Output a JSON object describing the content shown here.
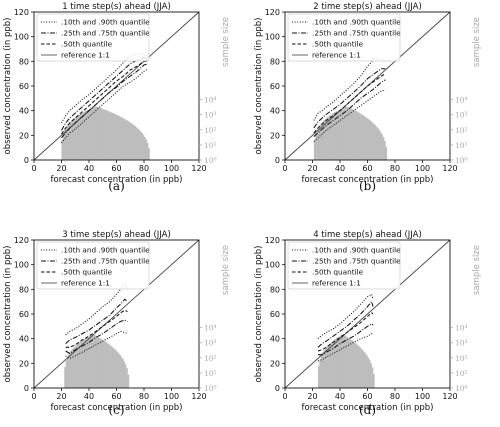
{
  "chart_data": [
    {
      "type": "line",
      "title": "1 time step(s) ahead (JJA)",
      "caption": "(a)",
      "xlabel": "forecast concentration (in ppb)",
      "ylabel": "observed concentration (in ppb)",
      "y2label": "sample size",
      "xlim": [
        0,
        120
      ],
      "ylim": [
        0,
        120
      ],
      "xticks": [
        "0",
        "20",
        "40",
        "60",
        "80",
        "100",
        "120"
      ],
      "yticks": [
        "0",
        "20",
        "40",
        "60",
        "80",
        "100",
        "120"
      ],
      "y2ticks": [
        "10⁰",
        "10¹",
        "10²",
        "10³",
        "10⁴"
      ],
      "legend": [
        ".10th and .90th quantile",
        ".25th and .75th quantile",
        ".50th quantile",
        "reference 1:1"
      ],
      "legend_position": "top-left",
      "series": [
        {
          "name": ".10th quantile",
          "style": "dotted",
          "x": [
            20,
            23,
            26,
            30,
            35,
            40,
            45,
            50,
            55,
            60,
            65,
            70,
            75,
            80,
            83
          ],
          "y": [
            14,
            18,
            22,
            25,
            30,
            35,
            40,
            45,
            50,
            55,
            60,
            63,
            67,
            72,
            74
          ]
        },
        {
          "name": ".90th quantile",
          "style": "dotted",
          "x": [
            20,
            23,
            26,
            30,
            35,
            40,
            45,
            50,
            55,
            60,
            65,
            70,
            75,
            80,
            83
          ],
          "y": [
            30,
            36,
            40,
            44,
            49,
            53,
            58,
            63,
            68,
            73,
            79,
            84,
            86,
            86,
            82
          ]
        },
        {
          "name": ".25th quantile",
          "style": "dashdot",
          "x": [
            20,
            23,
            26,
            30,
            35,
            40,
            45,
            50,
            55,
            60,
            65,
            70,
            75,
            80,
            83
          ],
          "y": [
            18,
            22,
            26,
            30,
            35,
            40,
            45,
            50,
            55,
            59,
            64,
            68,
            72,
            77,
            78
          ]
        },
        {
          "name": ".75th quantile",
          "style": "dashdot",
          "x": [
            20,
            23,
            26,
            30,
            35,
            40,
            45,
            50,
            55,
            60,
            65,
            70,
            75,
            80,
            83
          ],
          "y": [
            24,
            30,
            34,
            38,
            43,
            48,
            53,
            58,
            63,
            68,
            73,
            78,
            81,
            83,
            80
          ]
        },
        {
          "name": ".50th quantile",
          "style": "dashed",
          "x": [
            20,
            23,
            26,
            30,
            35,
            40,
            45,
            50,
            55,
            60,
            65,
            70,
            75,
            80,
            83
          ],
          "y": [
            21,
            26,
            30,
            34,
            39,
            44,
            49,
            54,
            59,
            64,
            68,
            73,
            76,
            80,
            80
          ]
        }
      ],
      "histogram": {
        "start": 20,
        "end": 84,
        "peak_at": 45,
        "peak_log": 3.55,
        "left_shape": 0.25,
        "right_shape": 0.35
      }
    },
    {
      "type": "line",
      "title": "2 time step(s) ahead (JJA)",
      "caption": "(b)",
      "xlabel": "forecast concentration (in ppb)",
      "ylabel": "observed concentration (in ppb)",
      "y2label": "sample size",
      "xlim": [
        0,
        120
      ],
      "ylim": [
        0,
        120
      ],
      "xticks": [
        "0",
        "20",
        "40",
        "60",
        "80",
        "100",
        "120"
      ],
      "yticks": [
        "0",
        "20",
        "40",
        "60",
        "80",
        "100",
        "120"
      ],
      "y2ticks": [
        "10⁰",
        "10¹",
        "10²",
        "10³",
        "10⁴"
      ],
      "legend": [
        ".10th and .90th quantile",
        ".25th and .75th quantile",
        ".50th quantile",
        "reference 1:1"
      ],
      "legend_position": "top-left",
      "series": [
        {
          "name": ".10th quantile",
          "style": "dotted",
          "x": [
            21,
            24,
            27,
            30,
            35,
            40,
            45,
            50,
            55,
            60,
            65,
            70,
            73
          ],
          "y": [
            15,
            18,
            21,
            24,
            28,
            32,
            36,
            40,
            44,
            48,
            52,
            56,
            57
          ]
        },
        {
          "name": ".90th quantile",
          "style": "dotted",
          "x": [
            21,
            24,
            27,
            30,
            35,
            40,
            45,
            50,
            55,
            60,
            65,
            70,
            73
          ],
          "y": [
            32,
            38,
            40,
            43,
            47,
            52,
            57,
            62,
            68,
            76,
            82,
            82,
            80
          ]
        },
        {
          "name": ".25th quantile",
          "style": "dashdot",
          "x": [
            21,
            24,
            27,
            30,
            35,
            40,
            45,
            50,
            55,
            60,
            65,
            70,
            73
          ],
          "y": [
            19,
            22,
            25,
            28,
            32,
            36,
            40,
            45,
            50,
            54,
            58,
            63,
            65
          ]
        },
        {
          "name": ".75th quantile",
          "style": "dashdot",
          "x": [
            21,
            24,
            27,
            30,
            35,
            40,
            45,
            50,
            55,
            60,
            65,
            70,
            73
          ],
          "y": [
            26,
            31,
            34,
            37,
            41,
            45,
            50,
            55,
            60,
            66,
            70,
            74,
            74
          ]
        },
        {
          "name": ".50th quantile",
          "style": "dashed",
          "x": [
            21,
            24,
            27,
            30,
            35,
            40,
            45,
            50,
            55,
            60,
            65,
            70,
            73
          ],
          "y": [
            22,
            26,
            29,
            32,
            36,
            40,
            45,
            50,
            55,
            60,
            64,
            68,
            70
          ]
        }
      ],
      "histogram": {
        "start": 21,
        "end": 74,
        "peak_at": 45,
        "peak_log": 3.55,
        "left_shape": 0.25,
        "right_shape": 0.35
      }
    },
    {
      "type": "line",
      "title": "3 time step(s) ahead (JJA)",
      "caption": "(c)",
      "xlabel": "forecast concentration (in ppb)",
      "ylabel": "observed concentration (in ppb)",
      "y2label": "sample size",
      "xlim": [
        0,
        120
      ],
      "ylim": [
        0,
        120
      ],
      "xticks": [
        "0",
        "20",
        "40",
        "60",
        "80",
        "100",
        "120"
      ],
      "yticks": [
        "0",
        "20",
        "40",
        "60",
        "80",
        "100",
        "120"
      ],
      "y2ticks": [
        "10⁰",
        "10¹",
        "10²",
        "10³",
        "10⁴"
      ],
      "legend": [
        ".10th and .90th quantile",
        ".25th and .75th quantile",
        ".50th quantile",
        "reference 1:1"
      ],
      "legend_position": "top-left",
      "series": [
        {
          "name": ".10th quantile",
          "style": "dotted",
          "x": [
            23,
            26,
            30,
            35,
            40,
            45,
            50,
            55,
            60,
            63,
            66,
            68
          ],
          "y": [
            26,
            24,
            26,
            29,
            32,
            35,
            38,
            41,
            44,
            46,
            45,
            44
          ]
        },
        {
          "name": ".90th quantile",
          "style": "dotted",
          "x": [
            23,
            26,
            30,
            35,
            40,
            45,
            50,
            55,
            60,
            63,
            66,
            68
          ],
          "y": [
            43,
            46,
            48,
            52,
            56,
            61,
            66,
            70,
            76,
            80,
            85,
            80
          ]
        },
        {
          "name": ".25th quantile",
          "style": "dashdot",
          "x": [
            23,
            26,
            30,
            35,
            40,
            45,
            50,
            55,
            60,
            63,
            66,
            68
          ],
          "y": [
            30,
            28,
            31,
            34,
            37,
            41,
            44,
            48,
            52,
            54,
            55,
            54
          ]
        },
        {
          "name": ".75th quantile",
          "style": "dashdot",
          "x": [
            23,
            26,
            30,
            35,
            40,
            45,
            50,
            55,
            60,
            63,
            66,
            68
          ],
          "y": [
            36,
            39,
            41,
            44,
            47,
            51,
            55,
            59,
            65,
            68,
            72,
            70
          ]
        },
        {
          "name": ".50th quantile",
          "style": "dashed",
          "x": [
            23,
            26,
            30,
            35,
            40,
            45,
            50,
            55,
            60,
            63,
            66,
            68
          ],
          "y": [
            33,
            33,
            35,
            39,
            42,
            46,
            50,
            54,
            58,
            61,
            63,
            62
          ]
        }
      ],
      "histogram": {
        "start": 22,
        "end": 69,
        "peak_at": 43,
        "peak_log": 3.55,
        "left_shape": 0.25,
        "right_shape": 0.35
      }
    },
    {
      "type": "line",
      "title": "4 time step(s) ahead (JJA)",
      "caption": "(d)",
      "xlabel": "forecast concentration (in ppb)",
      "ylabel": "observed concentration (in ppb)",
      "y2label": "sample size",
      "xlim": [
        0,
        120
      ],
      "ylim": [
        0,
        120
      ],
      "xticks": [
        "0",
        "20",
        "40",
        "60",
        "80",
        "100",
        "120"
      ],
      "yticks": [
        "0",
        "20",
        "40",
        "60",
        "80",
        "100",
        "120"
      ],
      "y2ticks": [
        "10⁰",
        "10¹",
        "10²",
        "10³",
        "10⁴"
      ],
      "legend": [
        ".10th and .90th quantile",
        ".25th and .75th quantile",
        ".50th quantile",
        "reference 1:1"
      ],
      "legend_position": "top-left",
      "series": [
        {
          "name": ".10th quantile",
          "style": "dotted",
          "x": [
            24,
            27,
            30,
            35,
            40,
            45,
            50,
            55,
            60,
            63,
            64
          ],
          "y": [
            22,
            23,
            25,
            28,
            31,
            34,
            37,
            40,
            42,
            44,
            43
          ]
        },
        {
          "name": ".90th quantile",
          "style": "dotted",
          "x": [
            24,
            27,
            30,
            35,
            40,
            45,
            50,
            55,
            60,
            63,
            64
          ],
          "y": [
            40,
            43,
            45,
            48,
            52,
            57,
            62,
            68,
            74,
            76,
            72
          ]
        },
        {
          "name": ".25th quantile",
          "style": "dashdot",
          "x": [
            24,
            27,
            30,
            35,
            40,
            45,
            50,
            55,
            60,
            63,
            64
          ],
          "y": [
            27,
            27,
            29,
            32,
            36,
            39,
            42,
            46,
            50,
            52,
            51
          ]
        },
        {
          "name": ".75th quantile",
          "style": "dashdot",
          "x": [
            24,
            27,
            30,
            35,
            40,
            45,
            50,
            55,
            60,
            63,
            64
          ],
          "y": [
            33,
            36,
            38,
            42,
            46,
            50,
            55,
            60,
            66,
            70,
            66
          ]
        },
        {
          "name": ".50th quantile",
          "style": "dashed",
          "x": [
            24,
            27,
            30,
            35,
            40,
            45,
            50,
            55,
            60,
            63,
            64
          ],
          "y": [
            30,
            31,
            33,
            37,
            41,
            45,
            49,
            53,
            58,
            61,
            60
          ]
        }
      ],
      "histogram": {
        "start": 24,
        "end": 65,
        "peak_at": 42,
        "peak_log": 3.55,
        "left_shape": 0.25,
        "right_shape": 0.35
      }
    }
  ],
  "colors": {
    "line": "#111111",
    "histogram": "#bdbdbd",
    "sample_size_axis": "#a9a9a9"
  }
}
